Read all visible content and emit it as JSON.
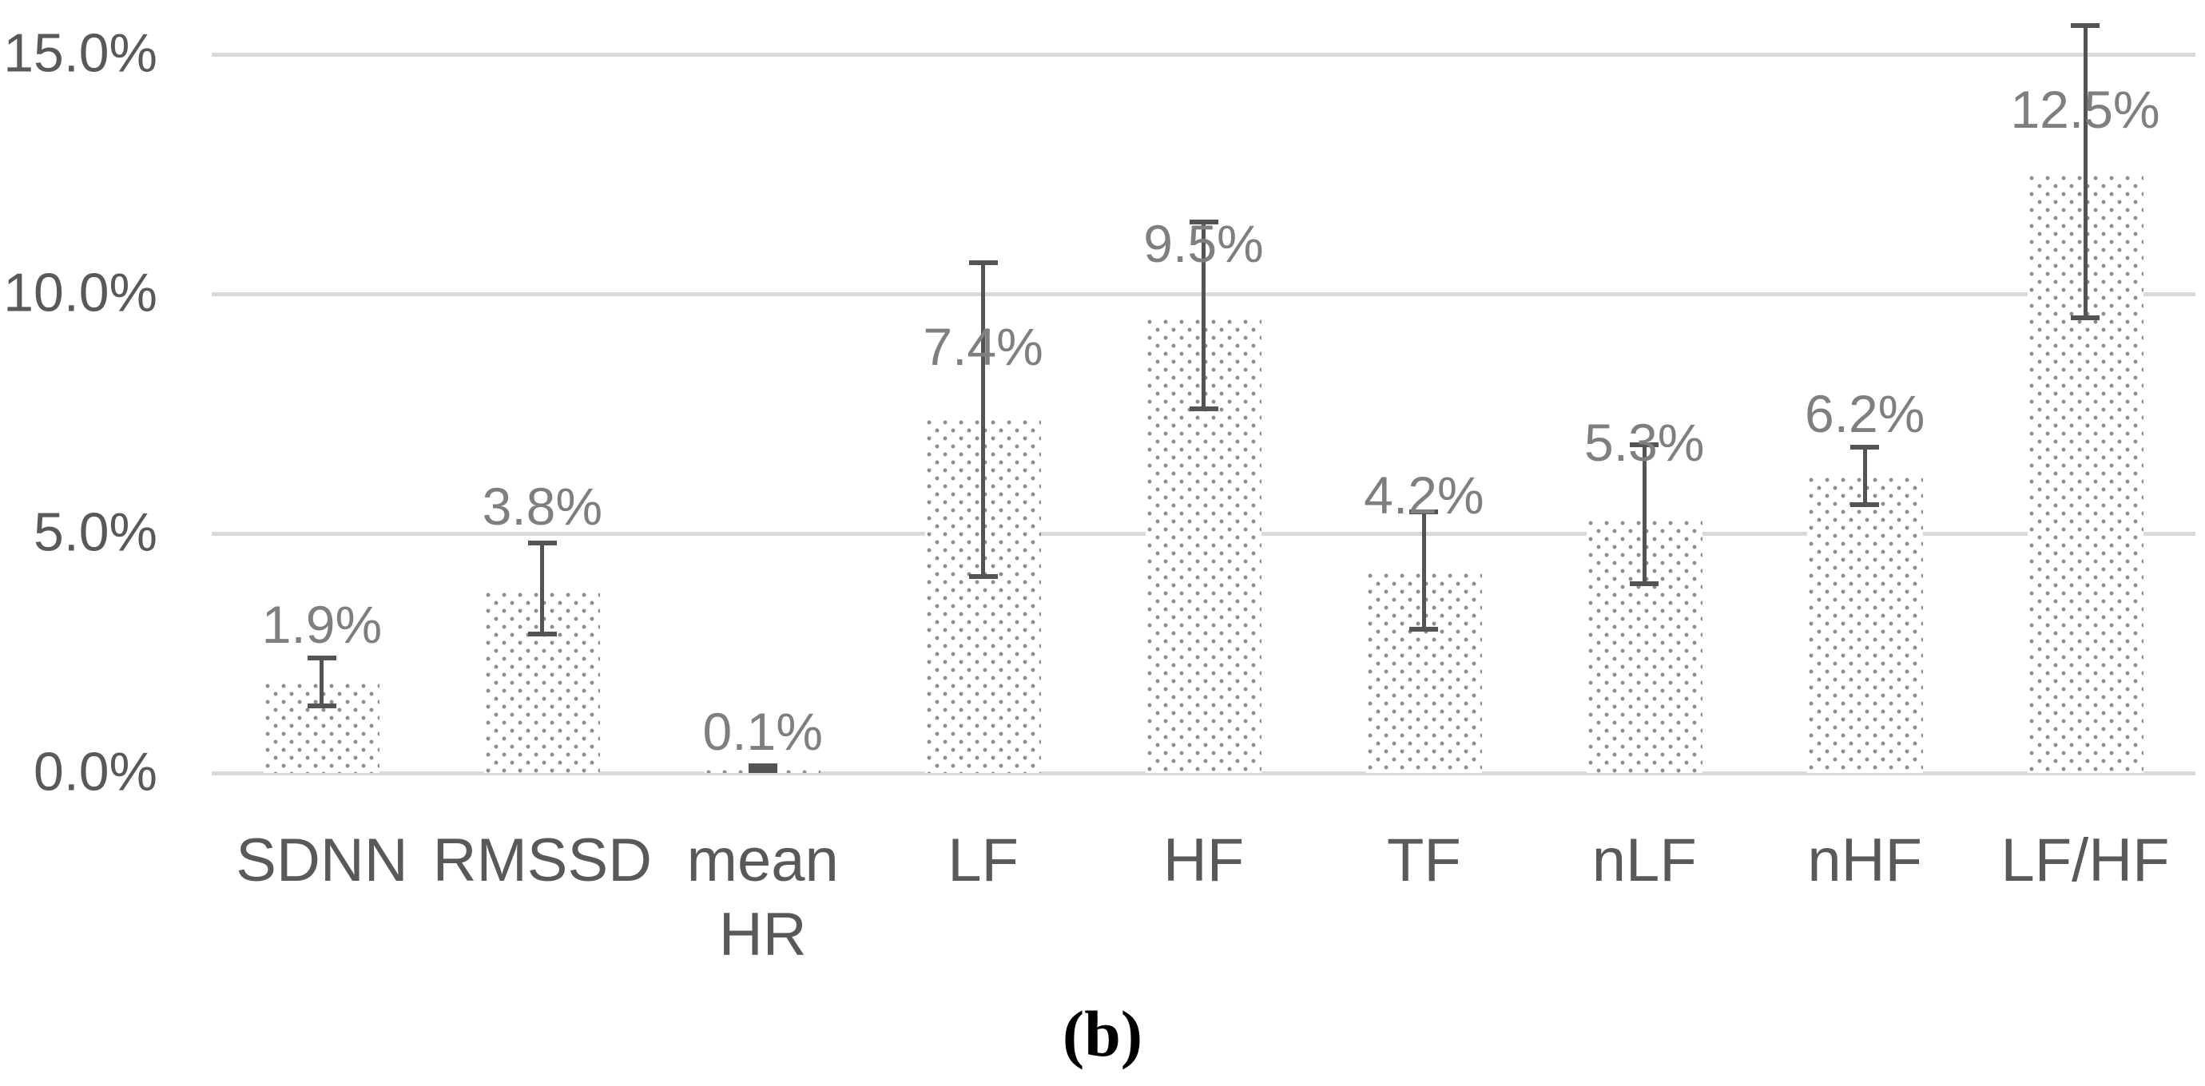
{
  "figure": {
    "caption": "(b)"
  },
  "chart_data": {
    "type": "bar",
    "title": "",
    "xlabel": "",
    "ylabel": "",
    "categories": [
      "SDNN",
      "RMSSD",
      "mean HR",
      "LF",
      "HF",
      "TF",
      "nLF",
      "nHF",
      "LF/HF"
    ],
    "values": [
      1.9,
      3.8,
      0.1,
      7.4,
      9.5,
      4.2,
      5.3,
      6.2,
      12.5
    ],
    "data_labels": [
      "1.9%",
      "3.8%",
      "0.1%",
      "7.4%",
      "9.5%",
      "4.2%",
      "5.3%",
      "6.2%",
      "12.5%"
    ],
    "error_low": [
      1.4,
      2.9,
      0.05,
      4.1,
      7.6,
      3.0,
      3.95,
      5.6,
      9.5
    ],
    "error_high": [
      2.4,
      4.8,
      0.15,
      10.65,
      11.5,
      5.45,
      6.85,
      6.8,
      15.6
    ],
    "label_bottom_pct": [
      2.55,
      5.02,
      0.32,
      8.35,
      10.5,
      5.25,
      6.35,
      6.95,
      13.3
    ],
    "ylim": [
      0,
      15.6
    ],
    "yticks": [
      0,
      5,
      10,
      15
    ],
    "ytick_labels": [
      "0.0%",
      "5.0%",
      "10.0%",
      "15.0%"
    ],
    "grid": true,
    "legend": "none",
    "bar_style": "dotted-halftone-pattern",
    "colors": {
      "background": "#ffffff",
      "gridline": "#d9d9d9",
      "error_bar": "#545454",
      "axis_label": "#595959",
      "category_label": "#595959",
      "data_label": "#7f7f7f",
      "bar_dot": "#8c8c8c",
      "caption": "#000000"
    }
  }
}
